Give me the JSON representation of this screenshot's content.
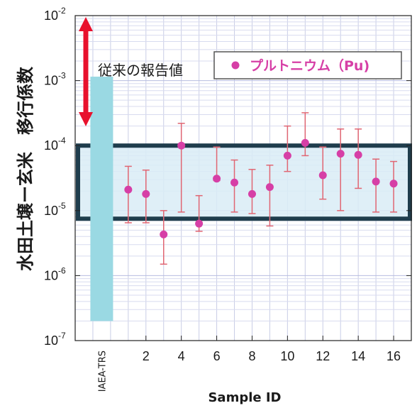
{
  "chart_data": {
    "type": "scatter",
    "title": "",
    "xlabel": "Sample ID",
    "ylabel": "水田土壌ー玄米　移行係数",
    "yscale": "log",
    "ylim": [
      1e-07,
      0.01
    ],
    "y_ticks": [
      {
        "base": "10",
        "exp": "-7",
        "value": 1e-07
      },
      {
        "base": "10",
        "exp": "-6",
        "value": 1e-06
      },
      {
        "base": "10",
        "exp": "-5",
        "value": 1e-05
      },
      {
        "base": "10",
        "exp": "-4",
        "value": 0.0001
      },
      {
        "base": "10",
        "exp": "-3",
        "value": 0.001
      },
      {
        "base": "10",
        "exp": "-2",
        "value": 0.01
      }
    ],
    "xlim": [
      -2,
      17
    ],
    "x_ticks": [
      2,
      4,
      6,
      8,
      10,
      12,
      14,
      16
    ],
    "reference": {
      "label": "IAEA-TRS",
      "x": -0.5,
      "low": 2e-07,
      "high": 0.00115,
      "color": "#9ad9e3"
    },
    "series": [
      {
        "name": "プルトニウム（Pu)",
        "color": "#d63fa6",
        "error_color": "#e06673",
        "points": [
          {
            "x": 1,
            "y": 2.1e-05,
            "lo": 6.5e-06,
            "hi": 4.8e-05
          },
          {
            "x": 2,
            "y": 1.8e-05,
            "lo": 6.5e-06,
            "hi": 4.2e-05
          },
          {
            "x": 3,
            "y": 4.3e-06,
            "lo": 1.5e-06,
            "hi": 1e-05
          },
          {
            "x": 4,
            "y": 0.0001,
            "lo": 9.5e-06,
            "hi": 0.00022
          },
          {
            "x": 5,
            "y": 6.3e-06,
            "lo": 4.8e-06,
            "hi": 1.7e-05
          },
          {
            "x": 6,
            "y": 3.1e-05,
            "lo": 2.9e-05,
            "hi": 9.5e-05
          },
          {
            "x": 7,
            "y": 2.7e-05,
            "lo": 9.5e-06,
            "hi": 6e-05
          },
          {
            "x": 8,
            "y": 1.8e-05,
            "lo": 9e-06,
            "hi": 4.3e-05
          },
          {
            "x": 9,
            "y": 2.3e-05,
            "lo": 5.8e-06,
            "hi": 5e-05
          },
          {
            "x": 10,
            "y": 7e-05,
            "lo": 4e-05,
            "hi": 0.0002
          },
          {
            "x": 11,
            "y": 0.00011,
            "lo": 7e-05,
            "hi": 0.00032
          },
          {
            "x": 12,
            "y": 3.5e-05,
            "lo": 1.5e-05,
            "hi": 9.5e-05
          },
          {
            "x": 13,
            "y": 7.5e-05,
            "lo": 1e-05,
            "hi": 0.00018
          },
          {
            "x": 14,
            "y": 7.2e-05,
            "lo": 2.2e-05,
            "hi": 0.00018
          },
          {
            "x": 15,
            "y": 2.8e-05,
            "lo": 9.5e-06,
            "hi": 6.2e-05
          },
          {
            "x": 16,
            "y": 2.6e-05,
            "lo": 9.5e-06,
            "hi": 5.7e-05
          }
        ]
      }
    ],
    "range_box": {
      "low": 7.5e-06,
      "high": 0.0001,
      "color": "#1f3d4d",
      "fill": "#d9ecf6"
    },
    "annotation": {
      "text": "従来の報告値",
      "color": "#e8112d"
    },
    "legend": {
      "position": "top-right"
    },
    "grid": true
  }
}
